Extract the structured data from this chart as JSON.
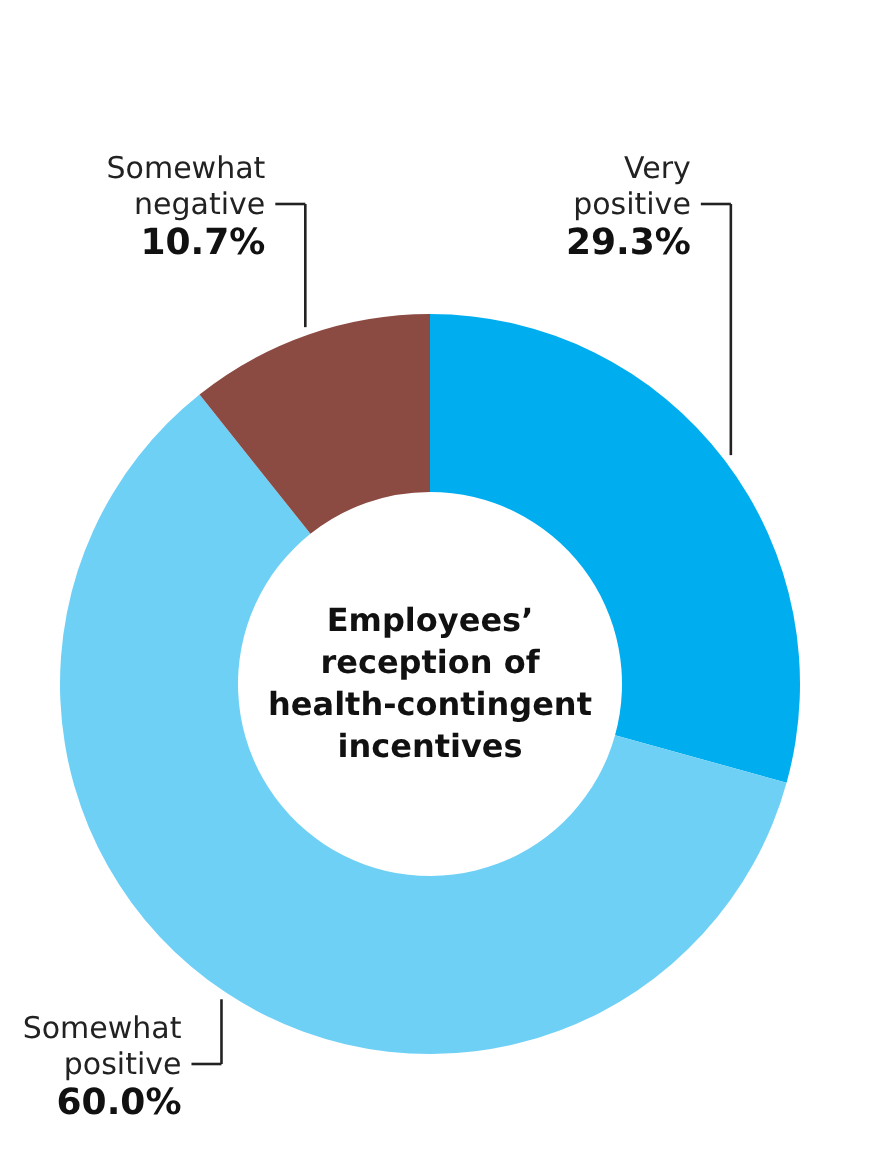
{
  "chart_data": {
    "type": "donut",
    "title": "Employees’ reception of health-contingent incentives",
    "categories": [
      "Very positive",
      "Somewhat positive",
      "Somewhat negative"
    ],
    "values": [
      29.3,
      60.0,
      10.7
    ],
    "colors": [
      "#00aeef",
      "#6fd0f6",
      "#8b4a42"
    ],
    "value_labels": [
      "29.3%",
      "60.0%",
      "10.7%"
    ]
  }
}
